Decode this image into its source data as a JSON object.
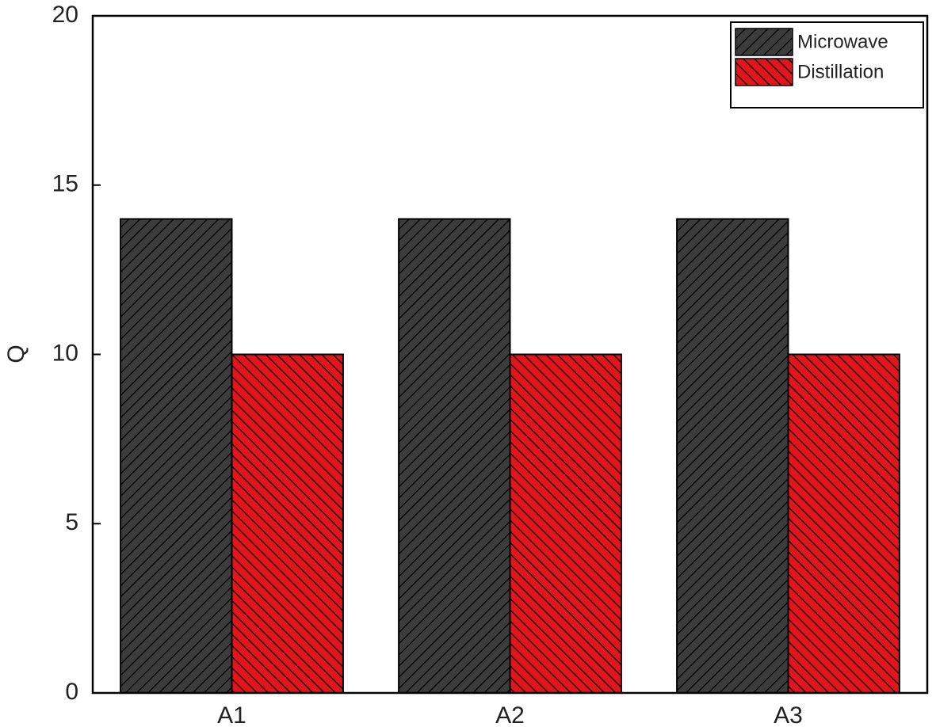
{
  "chart_data": {
    "type": "bar",
    "y_label": "Q",
    "categories": [
      "A1",
      "A2",
      "A3"
    ],
    "series": [
      {
        "name": "Microwave",
        "color": "#3c3c3c",
        "values": [
          14,
          14,
          14
        ]
      },
      {
        "name": "Distillation",
        "color": "#e0161c",
        "values": [
          10,
          10,
          10
        ]
      }
    ],
    "ylim": [
      0,
      20
    ],
    "yticks": [
      0,
      5,
      10,
      15,
      20
    ],
    "grid": false,
    "legend": "top-right"
  }
}
